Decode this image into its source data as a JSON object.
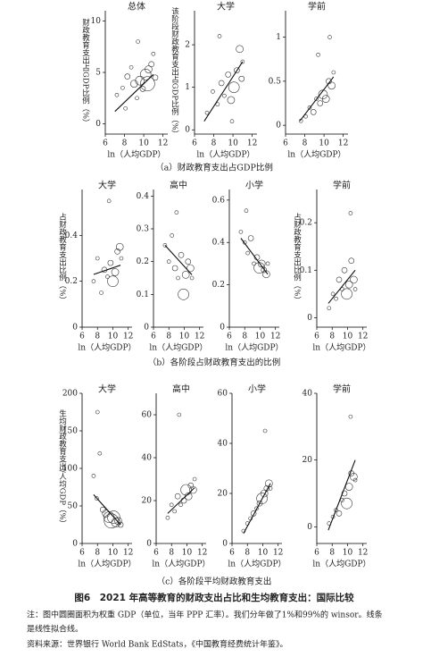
{
  "chart_data": [
    {
      "type": "scatter",
      "title": "总体",
      "ylabel": "财政教育支出占GDP比例（%）",
      "xlabel": "ln（人均GDP）",
      "xlim": [
        6,
        12.5
      ],
      "ylim": [
        -1,
        11
      ],
      "xticks": [
        6,
        8,
        10,
        12
      ],
      "yticks": [
        0,
        5,
        10
      ],
      "points": {
        "x": [
          7.2,
          7.8,
          8.3,
          8.7,
          9.0,
          9.3,
          9.6,
          9.9,
          10.2,
          10.5,
          10.8,
          11.0,
          8.1,
          9.4,
          10.4,
          11.2
        ],
        "y": [
          2.8,
          3.5,
          4.6,
          5.5,
          3.9,
          2.5,
          4.2,
          3.4,
          4.8,
          5.3,
          5.8,
          6.8,
          1.5,
          8.0,
          3.9,
          4.5
        ],
        "r": [
          2,
          2,
          3,
          2,
          4,
          2,
          5,
          3,
          6,
          4,
          3,
          2,
          2,
          2,
          8,
          3
        ]
      },
      "fit": {
        "x": [
          7,
          11
        ],
        "y": [
          1.2,
          4.8
        ]
      }
    },
    {
      "type": "scatter",
      "title": "大学",
      "ylabel": "该阶段财政教育支出占GDP比例（%）",
      "xlabel": "ln（人均GDP）",
      "xlim": [
        6,
        12.5
      ],
      "ylim": [
        -0.1,
        2.8
      ],
      "xticks": [
        6,
        8,
        10,
        12
      ],
      "yticks": [
        0,
        1,
        2
      ],
      "points": {
        "x": [
          7.3,
          7.9,
          8.4,
          8.8,
          9.1,
          9.5,
          9.8,
          10.1,
          10.4,
          10.7,
          11.0,
          10.9,
          8.6,
          9.9
        ],
        "y": [
          0.4,
          0.9,
          0.6,
          1.1,
          0.8,
          1.3,
          0.7,
          1.0,
          1.4,
          1.9,
          1.6,
          1.2,
          2.2,
          0.2
        ],
        "r": [
          2,
          2,
          2,
          3,
          2,
          3,
          4,
          6,
          3,
          4,
          2,
          3,
          2,
          2
        ]
      },
      "fit": {
        "x": [
          7,
          11
        ],
        "y": [
          0.2,
          1.6
        ]
      }
    },
    {
      "type": "scatter",
      "title": "学前",
      "xlabel": "ln（人均GDP）",
      "xlim": [
        6,
        12.5
      ],
      "ylim": [
        -0.1,
        1.3
      ],
      "xticks": [
        6,
        8,
        10,
        12
      ],
      "yticks": [
        0,
        0.5,
        1
      ],
      "points": {
        "x": [
          7.6,
          8.1,
          8.5,
          8.9,
          9.2,
          9.6,
          9.9,
          10.2,
          10.5,
          10.8,
          11.0,
          10.6,
          9.4
        ],
        "y": [
          0.05,
          0.1,
          0.2,
          0.15,
          0.3,
          0.25,
          0.35,
          0.3,
          0.5,
          0.45,
          0.6,
          1.0,
          0.8
        ],
        "r": [
          2,
          2,
          2,
          3,
          2,
          3,
          5,
          4,
          3,
          4,
          2,
          2,
          2
        ]
      },
      "fit": {
        "x": [
          7.5,
          11
        ],
        "y": [
          0.05,
          0.55
        ]
      }
    },
    {
      "type": "scatter",
      "title": "大学",
      "ylabel": "占财政教育支出比例（%）",
      "xlabel": "ln（人均GDP）",
      "xlim": [
        6,
        12.5
      ],
      "ylim": [
        0,
        0.6
      ],
      "xticks": [
        6,
        8,
        10,
        12
      ],
      "yticks": [
        0,
        0.2,
        0.4
      ],
      "points": {
        "x": [
          7.5,
          8.0,
          8.5,
          8.9,
          9.3,
          9.7,
          10.0,
          10.3,
          10.6,
          10.9,
          11.1,
          9.5
        ],
        "y": [
          0.2,
          0.3,
          0.15,
          0.25,
          0.22,
          0.28,
          0.2,
          0.24,
          0.33,
          0.35,
          0.3,
          0.55
        ],
        "r": [
          2,
          2,
          2,
          3,
          2,
          3,
          6,
          4,
          3,
          4,
          2,
          2
        ]
      },
      "fit": {
        "x": [
          7.5,
          11
        ],
        "y": [
          0.23,
          0.27
        ]
      }
    },
    {
      "type": "scatter",
      "title": "高中",
      "xlabel": "ln（人均GDP）",
      "xlim": [
        6,
        12.5
      ],
      "ylim": [
        0,
        0.42
      ],
      "xticks": [
        6,
        8,
        10,
        12
      ],
      "yticks": [
        0,
        0.1,
        0.2,
        0.3,
        0.4
      ],
      "points": {
        "x": [
          7.5,
          8.0,
          8.4,
          8.8,
          9.2,
          9.6,
          9.9,
          10.2,
          10.5,
          10.8,
          11.0,
          9.0
        ],
        "y": [
          0.25,
          0.2,
          0.28,
          0.18,
          0.15,
          0.22,
          0.1,
          0.16,
          0.2,
          0.18,
          0.15,
          0.35
        ],
        "r": [
          2,
          2,
          2,
          3,
          2,
          3,
          6,
          4,
          3,
          4,
          2,
          2
        ]
      },
      "fit": {
        "x": [
          7.5,
          11
        ],
        "y": [
          0.25,
          0.16
        ]
      }
    },
    {
      "type": "scatter",
      "title": "小学",
      "xlabel": "ln（人均GDP）",
      "xlim": [
        6,
        12.5
      ],
      "ylim": [
        0,
        0.65
      ],
      "xticks": [
        6,
        8,
        10,
        12
      ],
      "yticks": [
        0,
        0.2,
        0.4,
        0.6
      ],
      "points": {
        "x": [
          7.5,
          8.0,
          8.4,
          8.8,
          9.2,
          9.6,
          9.9,
          10.2,
          10.5,
          10.8,
          11.0,
          8.2
        ],
        "y": [
          0.45,
          0.4,
          0.35,
          0.42,
          0.3,
          0.33,
          0.28,
          0.3,
          0.27,
          0.25,
          0.3,
          0.55
        ],
        "r": [
          2,
          2,
          2,
          3,
          2,
          3,
          6,
          4,
          3,
          4,
          2,
          2
        ]
      },
      "fit": {
        "x": [
          7.5,
          11
        ],
        "y": [
          0.42,
          0.25
        ]
      }
    },
    {
      "type": "scatter",
      "title": "学前",
      "ylabel": "占财政教育支出比例（%）",
      "xlabel": "ln（人均GDP）",
      "xlim": [
        6,
        12.5
      ],
      "ylim": [
        -0.02,
        0.27
      ],
      "xticks": [
        6,
        8,
        10,
        12
      ],
      "yticks": [
        0,
        0.1,
        0.2
      ],
      "points": {
        "x": [
          7.6,
          8.1,
          8.5,
          8.9,
          9.3,
          9.6,
          9.9,
          10.2,
          10.5,
          10.8,
          11.0,
          10.4
        ],
        "y": [
          0.02,
          0.05,
          0.04,
          0.08,
          0.06,
          0.1,
          0.05,
          0.07,
          0.12,
          0.08,
          0.06,
          0.22
        ],
        "r": [
          2,
          2,
          2,
          3,
          2,
          3,
          6,
          4,
          3,
          4,
          2,
          2
        ]
      },
      "fit": {
        "x": [
          7.5,
          11
        ],
        "y": [
          0.03,
          0.1
        ]
      }
    },
    {
      "type": "scatter",
      "title": "大学",
      "ylabel": "生均财政教育支出/人均GDP（%）",
      "xlabel": "ln（人均GDP）",
      "xlim": [
        6,
        12.5
      ],
      "ylim": [
        0,
        200
      ],
      "xticks": [
        6,
        8,
        10,
        12
      ],
      "yticks": [
        0,
        50,
        100,
        150,
        200
      ],
      "points": {
        "x": [
          7.5,
          7.9,
          8.3,
          8.7,
          9.1,
          9.5,
          9.8,
          10.1,
          10.4,
          10.7,
          11.0,
          8.0
        ],
        "y": [
          90,
          60,
          120,
          45,
          40,
          35,
          30,
          35,
          28,
          30,
          25,
          175
        ],
        "r": [
          2,
          2,
          2,
          3,
          4,
          6,
          8,
          7,
          5,
          4,
          3,
          2
        ]
      },
      "fit": {
        "x": [
          7.5,
          11
        ],
        "y": [
          65,
          25
        ]
      }
    },
    {
      "type": "scatter",
      "title": "高中",
      "xlabel": "ln（人均GDP）",
      "xlim": [
        6,
        12.5
      ],
      "ylim": [
        0,
        70
      ],
      "xticks": [
        6,
        8,
        10,
        12
      ],
      "yticks": [
        0,
        20,
        40,
        60
      ],
      "points": {
        "x": [
          7.5,
          8.0,
          8.4,
          8.8,
          9.2,
          9.6,
          9.9,
          10.2,
          10.5,
          10.8,
          11.0,
          9.0
        ],
        "y": [
          12,
          18,
          15,
          22,
          18,
          20,
          25,
          22,
          27,
          25,
          30,
          60
        ],
        "r": [
          2,
          2,
          2,
          3,
          2,
          3,
          6,
          4,
          3,
          4,
          2,
          2
        ]
      },
      "fit": {
        "x": [
          7.5,
          11
        ],
        "y": [
          14,
          26
        ]
      }
    },
    {
      "type": "scatter",
      "title": "小学",
      "xlabel": "ln（人均GDP）",
      "xlim": [
        6,
        12.5
      ],
      "ylim": [
        0,
        60
      ],
      "xticks": [
        6,
        8,
        10,
        12
      ],
      "yticks": [
        0,
        20,
        40,
        60
      ],
      "points": {
        "x": [
          7.5,
          8.0,
          8.4,
          8.8,
          9.2,
          9.6,
          9.9,
          10.2,
          10.5,
          10.8,
          11.0,
          10.3
        ],
        "y": [
          5,
          8,
          10,
          12,
          14,
          16,
          18,
          20,
          22,
          24,
          22,
          45
        ],
        "r": [
          2,
          2,
          2,
          3,
          2,
          3,
          6,
          4,
          3,
          4,
          2,
          2
        ]
      },
      "fit": {
        "x": [
          7.5,
          11
        ],
        "y": [
          4,
          24
        ]
      }
    },
    {
      "type": "scatter",
      "title": "学前",
      "xlabel": "ln（人均GDP）",
      "xlim": [
        6,
        12.5
      ],
      "ylim": [
        -5,
        40
      ],
      "xticks": [
        6,
        8,
        10,
        12
      ],
      "yticks": [
        0,
        20,
        40
      ],
      "points": {
        "x": [
          7.6,
          8.1,
          8.5,
          8.9,
          9.3,
          9.6,
          9.9,
          10.2,
          10.5,
          10.8,
          11.0,
          10.4
        ],
        "y": [
          1,
          3,
          5,
          4,
          8,
          10,
          7,
          12,
          16,
          15,
          14,
          33
        ],
        "r": [
          2,
          2,
          2,
          3,
          2,
          3,
          6,
          4,
          3,
          4,
          2,
          2
        ]
      },
      "fit": {
        "x": [
          7.5,
          11
        ],
        "y": [
          -1,
          20
        ]
      }
    }
  ],
  "captions": [
    "（a）财政教育支出占GDP比例",
    "（b）各阶段占财政教育支出的比例",
    "（c）各阶段平均财政教育支出"
  ],
  "figure_title": "图6　2021 年高等教育的财政支出占比和生均教育支出：国际比较",
  "notes": [
    "注：图中圆圈面积为权重 GDP（单位，当年 PPP 汇率）。我们分年做了1%和99%的 winsor。线条",
    "是线性拟合线。"
  ],
  "source": "资料来源：世界银行 World Bank EdStats，《中国教育经费统计年鉴》。"
}
